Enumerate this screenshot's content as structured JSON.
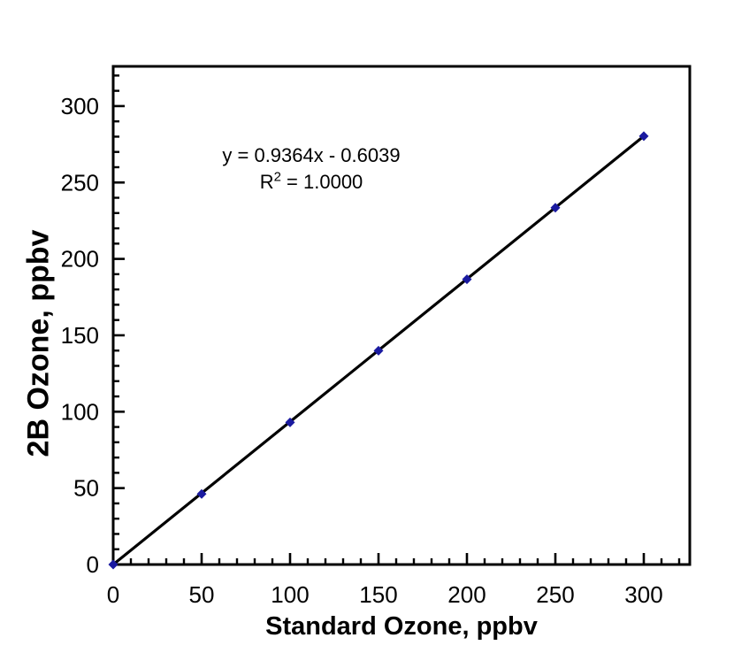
{
  "chart_data": {
    "type": "scatter",
    "title": "",
    "xlabel": "Standard Ozone, ppbv",
    "ylabel": "2B Ozone, ppbv",
    "x": [
      0,
      50,
      100,
      150,
      200,
      250,
      300
    ],
    "y": [
      0,
      46.2,
      93.0,
      139.9,
      186.7,
      233.5,
      280.3
    ],
    "xlim": [
      0,
      326
    ],
    "ylim": [
      0,
      326
    ],
    "x_major_ticks": [
      0,
      50,
      100,
      150,
      200,
      250,
      300
    ],
    "y_major_ticks": [
      0,
      50,
      100,
      150,
      200,
      250,
      300
    ],
    "x_tick_labels": [
      "0",
      "50",
      "100",
      "150",
      "200",
      "250",
      "300"
    ],
    "y_tick_labels": [
      "0",
      "50",
      "100",
      "150",
      "200",
      "250",
      "300"
    ],
    "minor_tick_step": 10,
    "grid": false,
    "legend_position": "none",
    "axis_color": "#000000",
    "tick_label_color": "#000000",
    "trendline": {
      "slope": 0.9364,
      "intercept": -0.6039,
      "x_start": 0,
      "x_end": 300,
      "color": "#000000",
      "equation": "y = 0.9364x - 0.6039",
      "r_squared_base": "R",
      "r_squared_sup": "2",
      "r_squared_value": " = 1.0000"
    },
    "marker": {
      "shape": "diamond",
      "color": "#1A1AA0",
      "size": 11
    }
  }
}
